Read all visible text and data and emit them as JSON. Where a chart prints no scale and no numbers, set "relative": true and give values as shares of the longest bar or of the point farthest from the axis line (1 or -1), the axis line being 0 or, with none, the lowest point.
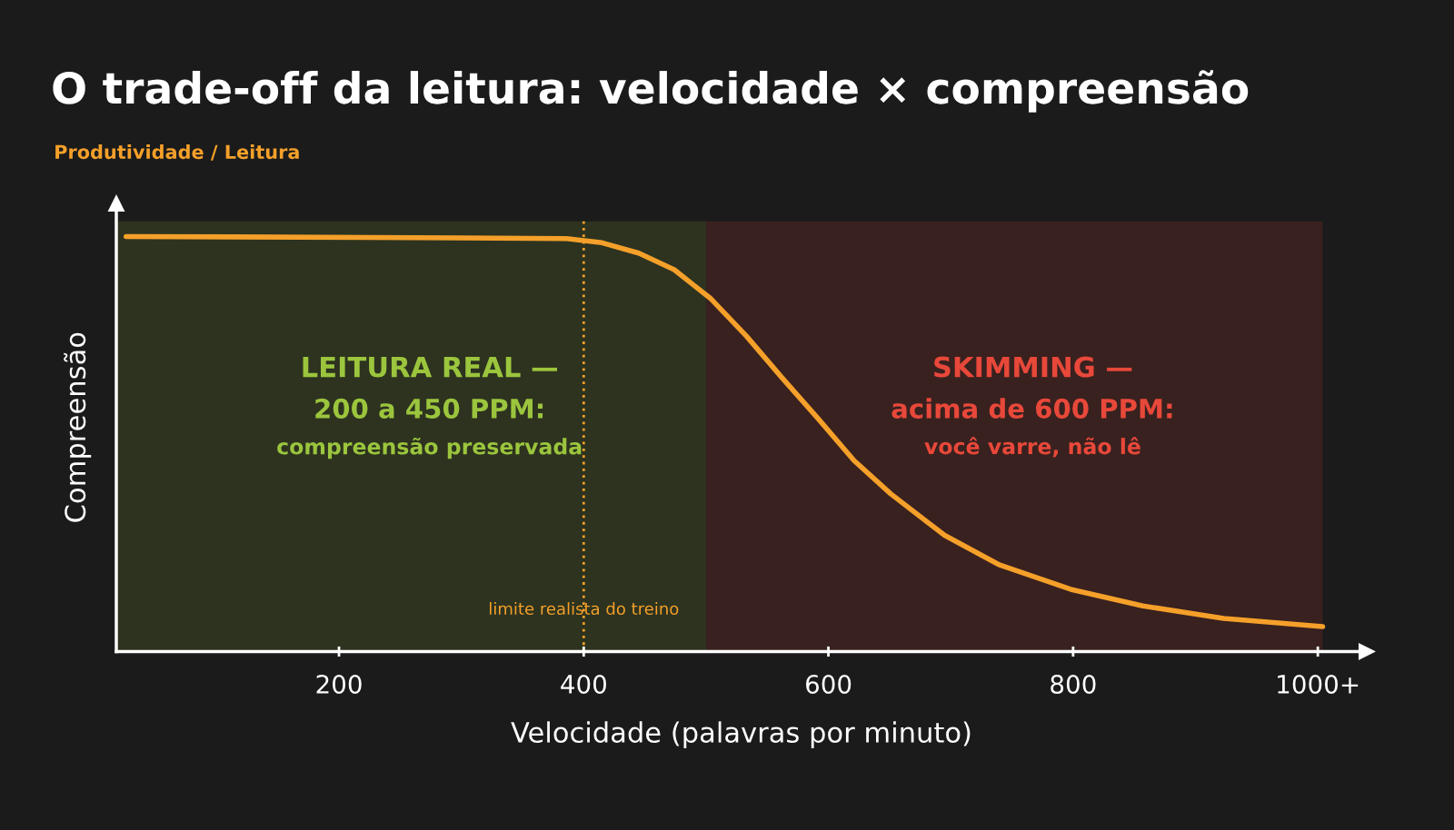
{
  "chart_data": {
    "type": "line",
    "title": "O trade-off da leitura: velocidade × compreensão",
    "subtitle": "Produtividade / Leitura",
    "xlabel": "Velocidade (palavras por minuto)",
    "ylabel": "Compreensão",
    "relative": true,
    "xlim": [
      18,
      1040
    ],
    "xticks": [
      200,
      400,
      600,
      800,
      {
        "value": 1000,
        "label": "1000+"
      }
    ],
    "tick_labels": "x",
    "grid": false,
    "marker": "none",
    "line_style": "solid",
    "series": [
      {
        "color": "#f5a02a",
        "x": [
          26,
          224,
          386,
          415,
          445,
          474,
          504,
          533,
          562,
          592,
          621,
          651,
          695,
          739,
          798,
          857,
          923,
          1004
        ],
        "values": [
          1.0,
          0.998,
          0.995,
          0.985,
          0.96,
          0.92,
          0.85,
          0.76,
          0.66,
          0.56,
          0.46,
          0.38,
          0.28,
          0.21,
          0.15,
          0.11,
          0.08,
          0.06
        ]
      }
    ],
    "ref_lines": [
      {
        "axis": "x",
        "value": 400,
        "label": "limite realista do treino",
        "color": "#f5a02a",
        "line_style": "dotted"
      }
    ],
    "bands": [
      {
        "axis": "x",
        "from": 18,
        "to": 500,
        "label": "LEITURA REAL —\n200 a 450 PPM:\ncompreensão preservada",
        "color": "#9bc53d"
      },
      {
        "axis": "x",
        "from": 500,
        "to": 1004,
        "label": "SKIMMING —\nacima de 600 PPM:\nvocê varre, não lê",
        "color": "#e8483a"
      }
    ]
  }
}
